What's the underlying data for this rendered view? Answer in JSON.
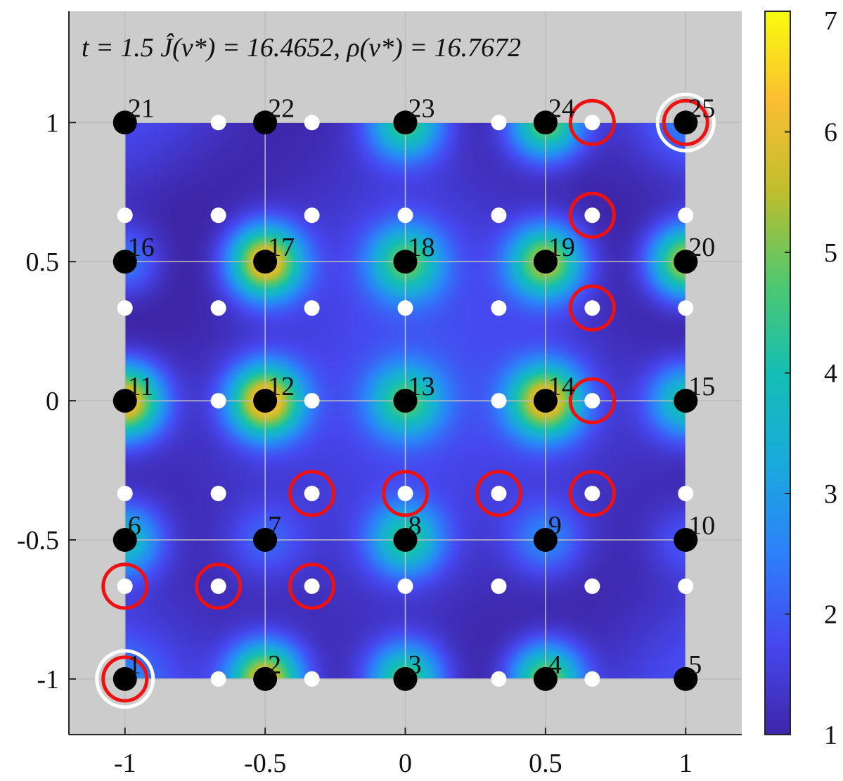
{
  "chart_data": {
    "type": "heatmap",
    "title": "t = 1.5    Ĵ(v*) = 16.4652,    ρ(v*) = 16.7672",
    "xlim": [
      -1.2,
      1.2
    ],
    "ylim": [
      -1.2,
      1.4
    ],
    "x_ticks": [
      -1,
      -0.5,
      0,
      0.5,
      1
    ],
    "x_tick_labels": [
      "-1",
      "-0.5",
      "0",
      "0.5",
      "1"
    ],
    "y_ticks": [
      -1,
      -0.5,
      0,
      0.5,
      1
    ],
    "y_tick_labels": [
      "-1",
      "-0.5",
      "0",
      "0.5",
      "1"
    ],
    "colorbar": {
      "range": [
        1,
        7
      ],
      "ticks": [
        1,
        2,
        3,
        4,
        5,
        6,
        7
      ],
      "tick_labels": [
        "1",
        "2",
        "3",
        "4",
        "5",
        "6",
        "7"
      ]
    },
    "heatmap_domain": {
      "x": [
        -1,
        1
      ],
      "y": [
        -1,
        1
      ]
    },
    "peaks": [
      {
        "x": -1,
        "y": 0,
        "amp": 5.2
      },
      {
        "x": -0.5,
        "y": 0,
        "amp": 5.2
      },
      {
        "x": 0,
        "y": 0,
        "amp": 3.0
      },
      {
        "x": 0.5,
        "y": 0,
        "amp": 4.8
      },
      {
        "x": 1,
        "y": 0,
        "amp": 3.0
      },
      {
        "x": -0.5,
        "y": 0.5,
        "amp": 5.2
      },
      {
        "x": 0,
        "y": 0.5,
        "amp": 3.3
      },
      {
        "x": 0.5,
        "y": 0.5,
        "amp": 4.3
      },
      {
        "x": 1,
        "y": 0.5,
        "amp": 4.8
      },
      {
        "x": -0.5,
        "y": -1,
        "amp": 5.0
      },
      {
        "x": 0,
        "y": -1,
        "amp": 3.5
      },
      {
        "x": 0.5,
        "y": -1,
        "amp": 4.2
      },
      {
        "x": 0,
        "y": 1,
        "amp": 3.3
      },
      {
        "x": 0.5,
        "y": 1,
        "amp": 4.0
      },
      {
        "x": -1,
        "y": -0.5,
        "amp": 2.8
      },
      {
        "x": 0,
        "y": -0.5,
        "amp": 3.0
      },
      {
        "x": 0.5,
        "y": -0.5,
        "amp": 1.4
      },
      {
        "x": -1,
        "y": 0.5,
        "amp": 1.6
      },
      {
        "x": -0.5,
        "y": -0.5,
        "amp": 0.9
      },
      {
        "x": -1,
        "y": -1,
        "amp": 0.8
      },
      {
        "x": 1,
        "y": -0.5,
        "amp": 0.9
      },
      {
        "x": 1,
        "y": 1,
        "amp": 0.8
      }
    ],
    "black_nodes": [
      {
        "id": "1",
        "x": -1,
        "y": -1
      },
      {
        "id": "2",
        "x": -0.5,
        "y": -1
      },
      {
        "id": "3",
        "x": 0,
        "y": -1
      },
      {
        "id": "4",
        "x": 0.5,
        "y": -1
      },
      {
        "id": "5",
        "x": 1,
        "y": -1
      },
      {
        "id": "6",
        "x": -1,
        "y": -0.5
      },
      {
        "id": "7",
        "x": -0.5,
        "y": -0.5
      },
      {
        "id": "8",
        "x": 0,
        "y": -0.5
      },
      {
        "id": "9",
        "x": 0.5,
        "y": -0.5
      },
      {
        "id": "10",
        "x": 1,
        "y": -0.5
      },
      {
        "id": "11",
        "x": -1,
        "y": 0
      },
      {
        "id": "12",
        "x": -0.5,
        "y": 0
      },
      {
        "id": "13",
        "x": 0,
        "y": 0
      },
      {
        "id": "14",
        "x": 0.5,
        "y": 0
      },
      {
        "id": "15",
        "x": 1,
        "y": 0
      },
      {
        "id": "16",
        "x": -1,
        "y": 0.5
      },
      {
        "id": "17",
        "x": -0.5,
        "y": 0.5
      },
      {
        "id": "18",
        "x": 0,
        "y": 0.5
      },
      {
        "id": "19",
        "x": 0.5,
        "y": 0.5
      },
      {
        "id": "20",
        "x": 1,
        "y": 0.5
      },
      {
        "id": "21",
        "x": -1,
        "y": 1
      },
      {
        "id": "22",
        "x": -0.5,
        "y": 1
      },
      {
        "id": "23",
        "x": 0,
        "y": 1
      },
      {
        "id": "24",
        "x": 0.5,
        "y": 1
      },
      {
        "id": "25",
        "x": 1,
        "y": 1
      }
    ],
    "white_points_x": [
      -1,
      -0.6667,
      -0.3333,
      0,
      0.3333,
      0.6667,
      1
    ],
    "white_points_y": [
      -1,
      -0.6667,
      -0.3333,
      0,
      0.3333,
      0.6667,
      1
    ],
    "red_circles": [
      {
        "x": 0.6667,
        "y": 1
      },
      {
        "x": 1,
        "y": 1
      },
      {
        "x": 0.6667,
        "y": 0.6667
      },
      {
        "x": 0.6667,
        "y": 0.3333
      },
      {
        "x": 0.6667,
        "y": 0
      },
      {
        "x": -0.3333,
        "y": -0.3333
      },
      {
        "x": 0,
        "y": -0.3333
      },
      {
        "x": 0.3333,
        "y": -0.3333
      },
      {
        "x": 0.6667,
        "y": -0.3333
      },
      {
        "x": -1,
        "y": -0.6667
      },
      {
        "x": -0.6667,
        "y": -0.6667
      },
      {
        "x": -0.3333,
        "y": -0.6667
      },
      {
        "x": -1,
        "y": -1
      }
    ],
    "white_circles": [
      {
        "x": -1,
        "y": -1
      },
      {
        "x": 1,
        "y": 1
      }
    ]
  },
  "colors": {
    "axes_background": "#cccccc",
    "grid": "#bdbdbd",
    "black_node": "#000000",
    "white_point": "#ffffff",
    "red_circle": "#ee1111",
    "white_circle": "#ffffff"
  }
}
